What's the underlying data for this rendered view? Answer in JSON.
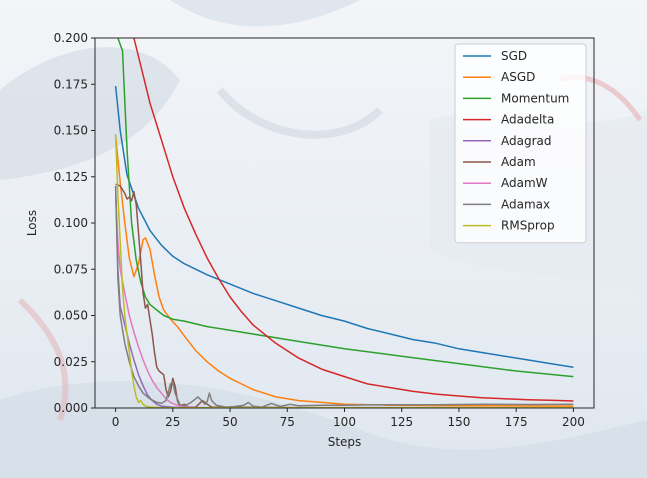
{
  "chart_data": {
    "type": "line",
    "xlabel": "Steps",
    "ylabel": "Loss",
    "xlim": [
      -9,
      209
    ],
    "ylim": [
      0,
      0.2
    ],
    "xticks": [
      "0",
      "25",
      "50",
      "75",
      "100",
      "125",
      "150",
      "175",
      "200"
    ],
    "yticks": [
      "0.000",
      "0.025",
      "0.050",
      "0.075",
      "0.100",
      "0.125",
      "0.150",
      "0.175",
      "0.200"
    ],
    "grid": false,
    "legend_position": "top-right",
    "series": [
      {
        "name": "SGD",
        "color": "#1f77b4",
        "points": [
          [
            0,
            0.174
          ],
          [
            2,
            0.15
          ],
          [
            5,
            0.126
          ],
          [
            10,
            0.108
          ],
          [
            15,
            0.096
          ],
          [
            20,
            0.088
          ],
          [
            25,
            0.082
          ],
          [
            30,
            0.078
          ],
          [
            40,
            0.072
          ],
          [
            50,
            0.067
          ],
          [
            60,
            0.062
          ],
          [
            70,
            0.058
          ],
          [
            80,
            0.054
          ],
          [
            90,
            0.05
          ],
          [
            100,
            0.047
          ],
          [
            110,
            0.043
          ],
          [
            120,
            0.04
          ],
          [
            130,
            0.037
          ],
          [
            140,
            0.035
          ],
          [
            150,
            0.032
          ],
          [
            160,
            0.03
          ],
          [
            170,
            0.028
          ],
          [
            180,
            0.026
          ],
          [
            190,
            0.024
          ],
          [
            200,
            0.022
          ]
        ]
      },
      {
        "name": "ASGD",
        "color": "#ff7f0e",
        "points": [
          [
            0,
            0.147
          ],
          [
            2,
            0.122
          ],
          [
            4,
            0.1
          ],
          [
            6,
            0.081
          ],
          [
            8,
            0.071
          ],
          [
            10,
            0.078
          ],
          [
            12,
            0.091
          ],
          [
            13,
            0.092
          ],
          [
            15,
            0.086
          ],
          [
            17,
            0.072
          ],
          [
            19,
            0.06
          ],
          [
            21,
            0.053
          ],
          [
            24,
            0.048
          ],
          [
            27,
            0.044
          ],
          [
            30,
            0.039
          ],
          [
            35,
            0.031
          ],
          [
            40,
            0.025
          ],
          [
            45,
            0.02
          ],
          [
            50,
            0.016
          ],
          [
            60,
            0.01
          ],
          [
            70,
            0.006
          ],
          [
            80,
            0.004
          ],
          [
            90,
            0.003
          ],
          [
            100,
            0.002
          ],
          [
            120,
            0.0015
          ],
          [
            150,
            0.0012
          ],
          [
            200,
            0.001
          ]
        ]
      },
      {
        "name": "Momentum",
        "color": "#2ca02c",
        "points": [
          [
            1,
            0.2
          ],
          [
            3,
            0.193
          ],
          [
            5,
            0.14
          ],
          [
            7,
            0.1
          ],
          [
            9,
            0.08
          ],
          [
            11,
            0.068
          ],
          [
            13,
            0.06
          ],
          [
            15,
            0.056
          ],
          [
            18,
            0.053
          ],
          [
            21,
            0.05
          ],
          [
            25,
            0.048
          ],
          [
            30,
            0.047
          ],
          [
            40,
            0.044
          ],
          [
            50,
            0.042
          ],
          [
            60,
            0.04
          ],
          [
            75,
            0.037
          ],
          [
            100,
            0.032
          ],
          [
            125,
            0.028
          ],
          [
            150,
            0.024
          ],
          [
            175,
            0.02
          ],
          [
            200,
            0.017
          ]
        ]
      },
      {
        "name": "Adadelta",
        "color": "#d62728",
        "points": [
          [
            8,
            0.2
          ],
          [
            10,
            0.19
          ],
          [
            15,
            0.165
          ],
          [
            20,
            0.145
          ],
          [
            25,
            0.125
          ],
          [
            30,
            0.108
          ],
          [
            35,
            0.094
          ],
          [
            40,
            0.081
          ],
          [
            45,
            0.07
          ],
          [
            50,
            0.06
          ],
          [
            55,
            0.052
          ],
          [
            60,
            0.045
          ],
          [
            70,
            0.035
          ],
          [
            80,
            0.027
          ],
          [
            90,
            0.021
          ],
          [
            100,
            0.017
          ],
          [
            110,
            0.013
          ],
          [
            120,
            0.011
          ],
          [
            130,
            0.009
          ],
          [
            140,
            0.0075
          ],
          [
            150,
            0.0065
          ],
          [
            160,
            0.0055
          ],
          [
            170,
            0.005
          ],
          [
            180,
            0.0045
          ],
          [
            190,
            0.0042
          ],
          [
            200,
            0.0038
          ]
        ]
      },
      {
        "name": "Adagrad",
        "color": "#9467bd",
        "points": [
          [
            0,
            0.12
          ],
          [
            1,
            0.075
          ],
          [
            2,
            0.055
          ],
          [
            4,
            0.045
          ],
          [
            6,
            0.035
          ],
          [
            8,
            0.026
          ],
          [
            10,
            0.018
          ],
          [
            12,
            0.012
          ],
          [
            14,
            0.007
          ],
          [
            16,
            0.004
          ],
          [
            18,
            0.002
          ],
          [
            20,
            0.001
          ],
          [
            25,
            0.0004
          ],
          [
            30,
            0.0002
          ],
          [
            60,
            0.0001
          ],
          [
            200,
            0.0001
          ]
        ]
      },
      {
        "name": "Adam",
        "color": "#8c564b",
        "points": [
          [
            0,
            0.121
          ],
          [
            2,
            0.12
          ],
          [
            4,
            0.116
          ],
          [
            5,
            0.113
          ],
          [
            6,
            0.114
          ],
          [
            7,
            0.112
          ],
          [
            8,
            0.117
          ],
          [
            9,
            0.11
          ],
          [
            10,
            0.095
          ],
          [
            11,
            0.079
          ],
          [
            12,
            0.062
          ],
          [
            13,
            0.054
          ],
          [
            14,
            0.056
          ],
          [
            15,
            0.048
          ],
          [
            16,
            0.04
          ],
          [
            17,
            0.03
          ],
          [
            18,
            0.022
          ],
          [
            19,
            0.02
          ],
          [
            20,
            0.019
          ],
          [
            21,
            0.018
          ],
          [
            22,
            0.01
          ],
          [
            23,
            0.006
          ],
          [
            24,
            0.009
          ],
          [
            25,
            0.016
          ],
          [
            26,
            0.012
          ],
          [
            27,
            0.004
          ],
          [
            28,
            0.001
          ],
          [
            30,
            0.002
          ],
          [
            32,
            0.0005
          ],
          [
            35,
            0.0005
          ],
          [
            38,
            0.004
          ],
          [
            40,
            0.002
          ],
          [
            42,
            0.0005
          ],
          [
            50,
            0.0004
          ],
          [
            60,
            0.0003
          ],
          [
            80,
            0.0002
          ],
          [
            200,
            0.0001
          ]
        ]
      },
      {
        "name": "AdamW",
        "color": "#e377c2",
        "points": [
          [
            0,
            0.115
          ],
          [
            1,
            0.09
          ],
          [
            2,
            0.075
          ],
          [
            4,
            0.062
          ],
          [
            6,
            0.05
          ],
          [
            8,
            0.041
          ],
          [
            10,
            0.033
          ],
          [
            12,
            0.026
          ],
          [
            14,
            0.02
          ],
          [
            16,
            0.015
          ],
          [
            18,
            0.011
          ],
          [
            20,
            0.008
          ],
          [
            22,
            0.005
          ],
          [
            24,
            0.003
          ],
          [
            27,
            0.0015
          ],
          [
            30,
            0.0008
          ],
          [
            35,
            0.0003
          ],
          [
            40,
            0.0001
          ],
          [
            200,
            0.0001
          ]
        ]
      },
      {
        "name": "Adamax",
        "color": "#7f7f7f",
        "points": [
          [
            0,
            0.12
          ],
          [
            1,
            0.07
          ],
          [
            2,
            0.05
          ],
          [
            4,
            0.035
          ],
          [
            6,
            0.025
          ],
          [
            8,
            0.017
          ],
          [
            10,
            0.012
          ],
          [
            12,
            0.008
          ],
          [
            15,
            0.005
          ],
          [
            18,
            0.003
          ],
          [
            20,
            0.0025
          ],
          [
            22,
            0.004
          ],
          [
            24,
            0.013
          ],
          [
            25,
            0.014
          ],
          [
            26,
            0.008
          ],
          [
            28,
            0.002
          ],
          [
            30,
            0.001
          ],
          [
            33,
            0.003
          ],
          [
            36,
            0.006
          ],
          [
            39,
            0.002
          ],
          [
            40,
            0.0035
          ],
          [
            41,
            0.008
          ],
          [
            42,
            0.004
          ],
          [
            44,
            0.0015
          ],
          [
            48,
            0.0005
          ],
          [
            52,
            0.0008
          ],
          [
            56,
            0.0015
          ],
          [
            58,
            0.003
          ],
          [
            60,
            0.001
          ],
          [
            64,
            0.0005
          ],
          [
            68,
            0.0025
          ],
          [
            72,
            0.0008
          ],
          [
            76,
            0.002
          ],
          [
            80,
            0.0012
          ],
          [
            90,
            0.0015
          ],
          [
            100,
            0.0015
          ],
          [
            110,
            0.0017
          ],
          [
            120,
            0.0018
          ],
          [
            140,
            0.0018
          ],
          [
            160,
            0.002
          ],
          [
            180,
            0.0019
          ],
          [
            200,
            0.002
          ]
        ]
      },
      {
        "name": "RMSprop",
        "color": "#bcbd22",
        "points": [
          [
            0,
            0.148
          ],
          [
            1,
            0.115
          ],
          [
            2,
            0.09
          ],
          [
            3,
            0.065
          ],
          [
            4,
            0.05
          ],
          [
            5,
            0.04
          ],
          [
            6,
            0.03
          ],
          [
            7,
            0.02
          ],
          [
            8,
            0.012
          ],
          [
            9,
            0.006
          ],
          [
            10,
            0.003
          ],
          [
            11,
            0.004
          ],
          [
            12,
            0.002
          ],
          [
            13,
            0.001
          ],
          [
            15,
            0.0005
          ],
          [
            20,
            0.0002
          ],
          [
            30,
            0.0001
          ],
          [
            200,
            0.0001
          ]
        ]
      }
    ]
  }
}
